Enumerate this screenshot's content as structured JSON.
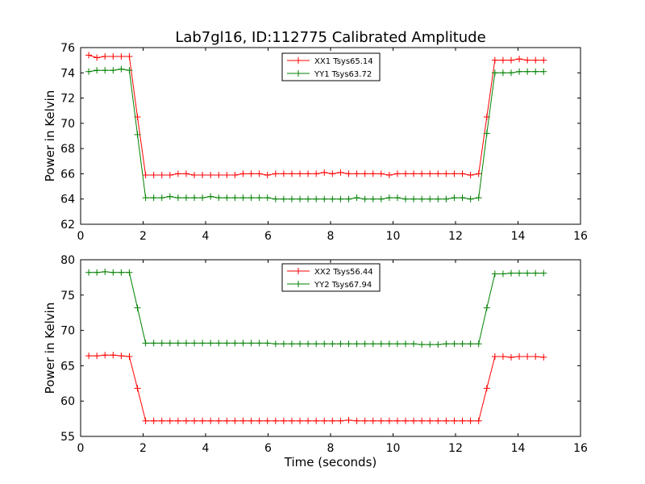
{
  "window": {
    "title": "Lab7gl16, ID:112775 Calibrated Amplitude"
  },
  "colors": {
    "series_1": "#ff0000",
    "series_2": "#008000",
    "axes": "#000000",
    "background": "#ffffff"
  },
  "chart_data": [
    {
      "type": "line",
      "title": "Lab7gl16, ID:112775 Calibrated Amplitude",
      "xlabel": "",
      "ylabel": "Power in Kelvin",
      "xlim": [
        0,
        16
      ],
      "ylim": [
        62,
        76
      ],
      "xticks": [
        "0",
        "2",
        "4",
        "6",
        "8",
        "10",
        "12",
        "14",
        "16"
      ],
      "yticks": [
        "62",
        "64",
        "66",
        "68",
        "70",
        "72",
        "74",
        "76"
      ],
      "grid": false,
      "legend_position": "top-center",
      "marker": "+",
      "x": [
        0.26,
        0.52,
        0.78,
        1.04,
        1.3,
        1.56,
        1.82,
        2.08,
        2.34,
        2.6,
        2.86,
        3.12,
        3.38,
        3.64,
        3.9,
        4.16,
        4.42,
        4.68,
        4.94,
        5.2,
        5.46,
        5.72,
        5.98,
        6.24,
        6.5,
        6.76,
        7.02,
        7.28,
        7.54,
        7.8,
        8.06,
        8.32,
        8.58,
        8.84,
        9.1,
        9.36,
        9.62,
        9.88,
        10.14,
        10.4,
        10.66,
        10.92,
        11.18,
        11.44,
        11.7,
        11.96,
        12.22,
        12.48,
        12.74,
        13.0,
        13.26,
        13.52,
        13.78,
        14.04,
        14.3,
        14.56,
        14.82
      ],
      "series": [
        {
          "name": "XX1 Tsys65.14",
          "color": "#ff0000",
          "values": [
            75.4,
            75.2,
            75.3,
            75.3,
            75.3,
            75.3,
            70.5,
            65.9,
            65.9,
            65.9,
            65.9,
            66.0,
            66.0,
            65.9,
            65.9,
            65.9,
            65.9,
            65.9,
            65.9,
            66.0,
            66.0,
            66.0,
            65.9,
            66.0,
            66.0,
            66.0,
            66.0,
            66.0,
            66.0,
            66.1,
            66.0,
            66.1,
            66.0,
            66.0,
            66.0,
            66.0,
            66.0,
            65.9,
            66.0,
            66.0,
            66.0,
            66.0,
            66.0,
            66.0,
            66.0,
            66.0,
            66.0,
            65.9,
            66.0,
            70.5,
            75.0,
            75.0,
            75.0,
            75.1,
            75.0,
            75.0,
            75.0
          ]
        },
        {
          "name": "YY1 Tsys63.72",
          "color": "#008000",
          "values": [
            74.1,
            74.2,
            74.2,
            74.2,
            74.3,
            74.2,
            69.1,
            64.1,
            64.1,
            64.1,
            64.2,
            64.1,
            64.1,
            64.1,
            64.1,
            64.2,
            64.1,
            64.1,
            64.1,
            64.1,
            64.1,
            64.1,
            64.1,
            64.0,
            64.0,
            64.0,
            64.0,
            64.0,
            64.0,
            64.0,
            64.0,
            64.0,
            64.0,
            64.1,
            64.0,
            64.0,
            64.0,
            64.1,
            64.1,
            64.0,
            64.0,
            64.0,
            64.0,
            64.0,
            64.0,
            64.1,
            64.1,
            64.0,
            64.1,
            69.2,
            74.0,
            74.0,
            74.0,
            74.1,
            74.1,
            74.1,
            74.1
          ]
        }
      ]
    },
    {
      "type": "line",
      "title": "",
      "xlabel": "Time (seconds)",
      "ylabel": "Power in Kelvin",
      "xlim": [
        0,
        16
      ],
      "ylim": [
        55,
        80
      ],
      "xticks": [
        "0",
        "2",
        "4",
        "6",
        "8",
        "10",
        "12",
        "14",
        "16"
      ],
      "yticks": [
        "55",
        "60",
        "65",
        "70",
        "75",
        "80"
      ],
      "grid": false,
      "legend_position": "top-center",
      "marker": "+",
      "x": [
        0.26,
        0.52,
        0.78,
        1.04,
        1.3,
        1.56,
        1.82,
        2.08,
        2.34,
        2.6,
        2.86,
        3.12,
        3.38,
        3.64,
        3.9,
        4.16,
        4.42,
        4.68,
        4.94,
        5.2,
        5.46,
        5.72,
        5.98,
        6.24,
        6.5,
        6.76,
        7.02,
        7.28,
        7.54,
        7.8,
        8.06,
        8.32,
        8.58,
        8.84,
        9.1,
        9.36,
        9.62,
        9.88,
        10.14,
        10.4,
        10.66,
        10.92,
        11.18,
        11.44,
        11.7,
        11.96,
        12.22,
        12.48,
        12.74,
        13.0,
        13.26,
        13.52,
        13.78,
        14.04,
        14.3,
        14.56,
        14.82
      ],
      "series": [
        {
          "name": "XX2 Tsys56.44",
          "color": "#ff0000",
          "values": [
            66.4,
            66.4,
            66.5,
            66.5,
            66.4,
            66.3,
            61.8,
            57.2,
            57.2,
            57.2,
            57.2,
            57.2,
            57.2,
            57.2,
            57.2,
            57.2,
            57.2,
            57.2,
            57.2,
            57.2,
            57.2,
            57.2,
            57.2,
            57.2,
            57.2,
            57.2,
            57.2,
            57.2,
            57.2,
            57.2,
            57.2,
            57.2,
            57.3,
            57.2,
            57.2,
            57.2,
            57.2,
            57.2,
            57.2,
            57.2,
            57.2,
            57.2,
            57.2,
            57.2,
            57.2,
            57.2,
            57.2,
            57.2,
            57.2,
            61.8,
            66.3,
            66.3,
            66.2,
            66.3,
            66.3,
            66.3,
            66.2
          ]
        },
        {
          "name": "YY2 Tsys67.94",
          "color": "#008000",
          "values": [
            78.2,
            78.2,
            78.3,
            78.2,
            78.2,
            78.2,
            73.2,
            68.2,
            68.2,
            68.2,
            68.2,
            68.2,
            68.2,
            68.2,
            68.2,
            68.2,
            68.2,
            68.2,
            68.2,
            68.2,
            68.2,
            68.2,
            68.2,
            68.1,
            68.1,
            68.1,
            68.1,
            68.1,
            68.1,
            68.1,
            68.1,
            68.1,
            68.1,
            68.1,
            68.1,
            68.1,
            68.1,
            68.1,
            68.1,
            68.1,
            68.1,
            68.0,
            68.0,
            68.0,
            68.1,
            68.1,
            68.1,
            68.1,
            68.1,
            73.2,
            78.0,
            78.0,
            78.1,
            78.1,
            78.1,
            78.1,
            78.1
          ]
        }
      ]
    }
  ]
}
